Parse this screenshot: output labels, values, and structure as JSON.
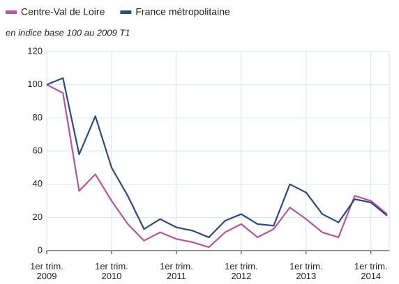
{
  "chart_data": {
    "type": "line",
    "subtitle": "en indice base 100 au 2009 T1",
    "categories": [
      "1er trim. 2009",
      null,
      null,
      null,
      "1er trim. 2010",
      null,
      null,
      null,
      "1er trim. 2011",
      null,
      null,
      null,
      "1er trim. 2012",
      null,
      null,
      null,
      "1er trim. 2013",
      null,
      null,
      null,
      "1er trim. 2014",
      null
    ],
    "series": [
      {
        "name": "Centre-Val de Loire",
        "color": "#b5559f",
        "values": [
          100,
          95,
          36,
          46,
          30,
          16,
          6,
          11,
          7,
          5,
          2,
          11,
          16,
          8,
          13,
          26,
          19,
          11,
          8,
          33,
          30,
          22
        ]
      },
      {
        "name": "France métropolitaine",
        "color": "#2b4a7e",
        "values": [
          100,
          104,
          58,
          81,
          50,
          33,
          13,
          19,
          14,
          12,
          8,
          18,
          22,
          16,
          15,
          40,
          35,
          22,
          17,
          31,
          29,
          21
        ]
      }
    ],
    "ylim": [
      0,
      120
    ],
    "yticks": [
      0,
      20,
      40,
      60,
      80,
      100,
      120
    ],
    "grid": true
  }
}
